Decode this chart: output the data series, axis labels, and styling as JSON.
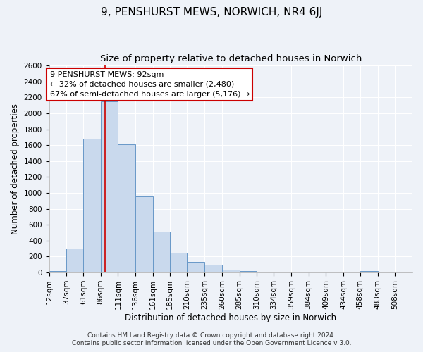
{
  "title": "9, PENSHURST MEWS, NORWICH, NR4 6JJ",
  "subtitle": "Size of property relative to detached houses in Norwich",
  "xlabel": "Distribution of detached houses by size in Norwich",
  "ylabel": "Number of detached properties",
  "bin_labels": [
    "12sqm",
    "37sqm",
    "61sqm",
    "86sqm",
    "111sqm",
    "136sqm",
    "161sqm",
    "185sqm",
    "210sqm",
    "235sqm",
    "260sqm",
    "285sqm",
    "310sqm",
    "334sqm",
    "359sqm",
    "384sqm",
    "409sqm",
    "434sqm",
    "458sqm",
    "483sqm",
    "508sqm"
  ],
  "bin_edges": [
    12,
    37,
    61,
    86,
    111,
    136,
    161,
    185,
    210,
    235,
    260,
    285,
    310,
    334,
    359,
    384,
    409,
    434,
    458,
    483,
    508
  ],
  "bin_widths": [
    25,
    24,
    25,
    25,
    25,
    25,
    24,
    25,
    25,
    25,
    25,
    25,
    24,
    25,
    25,
    25,
    25,
    24,
    25,
    25,
    25
  ],
  "bar_heights": [
    20,
    300,
    1680,
    2150,
    1610,
    960,
    510,
    245,
    130,
    100,
    35,
    20,
    10,
    10,
    5,
    5,
    5,
    5,
    15,
    5,
    0
  ],
  "bar_color": "#c9d9ed",
  "bar_edge_color": "#6898c8",
  "property_value": 92,
  "vline_color": "#cc0000",
  "annotation_line1": "9 PENSHURST MEWS: 92sqm",
  "annotation_line2": "← 32% of detached houses are smaller (2,480)",
  "annotation_line3": "67% of semi-detached houses are larger (5,176) →",
  "annotation_box_edge": "#cc0000",
  "annotation_box_bg": "#ffffff",
  "ylim": [
    0,
    2600
  ],
  "yticks": [
    0,
    200,
    400,
    600,
    800,
    1000,
    1200,
    1400,
    1600,
    1800,
    2000,
    2200,
    2400,
    2600
  ],
  "footer1": "Contains HM Land Registry data © Crown copyright and database right 2024.",
  "footer2": "Contains public sector information licensed under the Open Government Licence v 3.0.",
  "background_color": "#eef2f8",
  "grid_color": "#ffffff",
  "title_fontsize": 11,
  "subtitle_fontsize": 9.5,
  "axis_label_fontsize": 8.5,
  "tick_fontsize": 7.5,
  "annotation_fontsize": 8,
  "footer_fontsize": 6.5
}
